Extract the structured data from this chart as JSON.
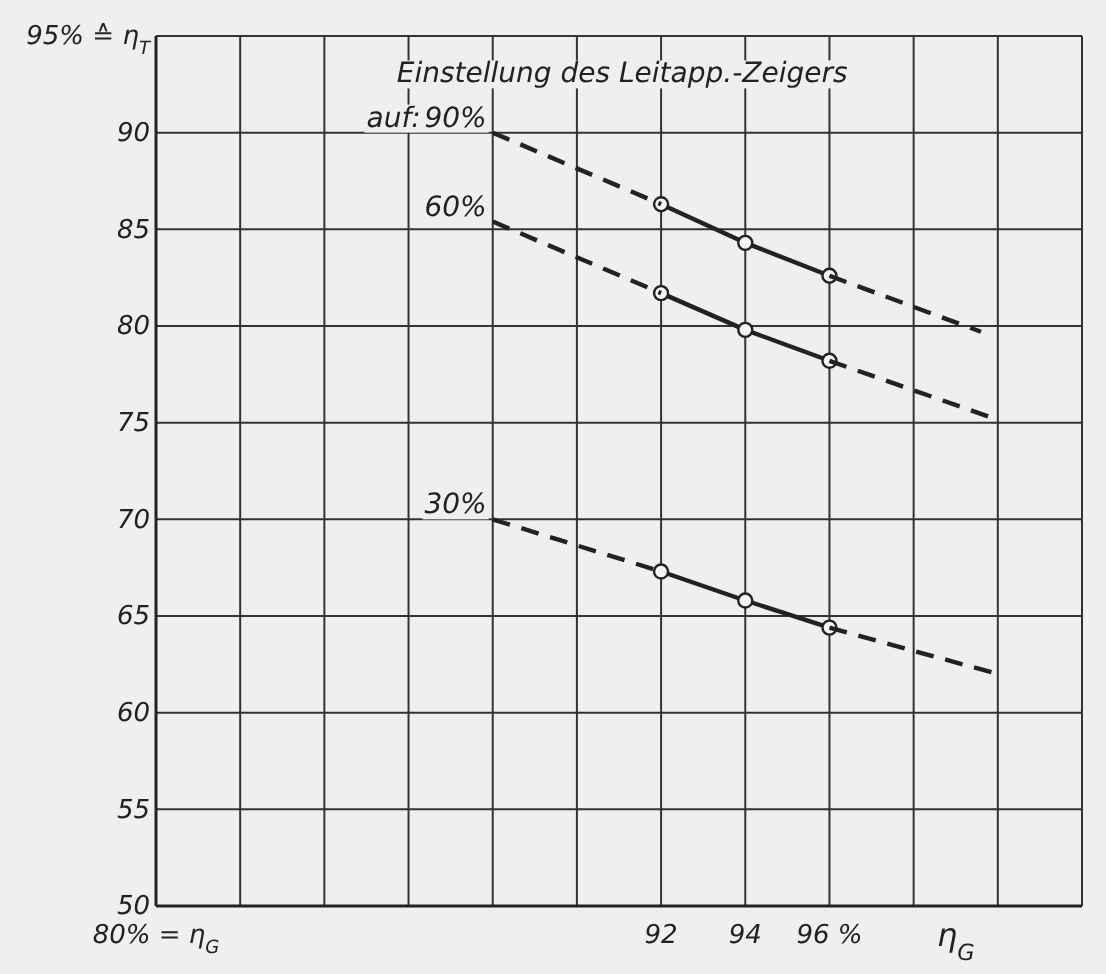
{
  "chart_data": {
    "type": "line",
    "xlabel": "η$_{G}$",
    "xlim": [
      80,
      102
    ],
    "xticks": [
      {
        "value": 80,
        "label": "80% = η$_{G}$"
      },
      {
        "value": 82,
        "label": null
      },
      {
        "value": 84,
        "label": null
      },
      {
        "value": 86,
        "label": null
      },
      {
        "value": 88,
        "label": null
      },
      {
        "value": 90,
        "label": null
      },
      92,
      94,
      {
        "value": 96,
        "label": "96 %"
      },
      {
        "value": 98,
        "label": null
      },
      {
        "value": 100,
        "label": null
      },
      {
        "value": 102,
        "label": null
      }
    ],
    "ylim": [
      50,
      95
    ],
    "yticks": [
      50,
      55,
      60,
      65,
      70,
      75,
      80,
      85,
      90,
      {
        "value": 95,
        "label": "95% ≙ η$_{T}$"
      }
    ],
    "grid": true,
    "legend": false,
    "series": [
      {
        "color": "#222222",
        "marker": "circle",
        "line_style": "solid",
        "x": [
          92,
          94,
          96
        ],
        "values": [
          86.3,
          84.3,
          82.6
        ]
      },
      {
        "name": "90%",
        "color": "#222222",
        "marker": "none",
        "line_style": "dashed",
        "x": [
          88,
          92,
          94,
          96,
          99.6
        ],
        "values": [
          90,
          86.3,
          null,
          82.6,
          79.7
        ]
      },
      {
        "color": "#222222",
        "marker": "circle",
        "line_style": "solid",
        "x": [
          92,
          94,
          96
        ],
        "values": [
          81.7,
          79.8,
          78.2
        ]
      },
      {
        "name": "60%",
        "color": "#222222",
        "marker": "none",
        "line_style": "dashed",
        "x": [
          88,
          92,
          94,
          96,
          99.8
        ],
        "values": [
          85.4,
          81.7,
          null,
          78.2,
          75.3
        ]
      },
      {
        "color": "#222222",
        "marker": "circle",
        "line_style": "solid",
        "x": [
          92,
          94,
          96
        ],
        "values": [
          67.3,
          65.8,
          64.4
        ]
      },
      {
        "name": "30%",
        "color": "#222222",
        "marker": "none",
        "line_style": "dashed",
        "x": [
          88,
          92,
          94,
          96,
          100
        ],
        "values": [
          70,
          67.3,
          null,
          64.4,
          62
        ]
      }
    ],
    "annotations": [
      {
        "text": "Einstellung des Leitapp.-Zeigers"
      },
      {
        "text": "auf:"
      }
    ]
  }
}
